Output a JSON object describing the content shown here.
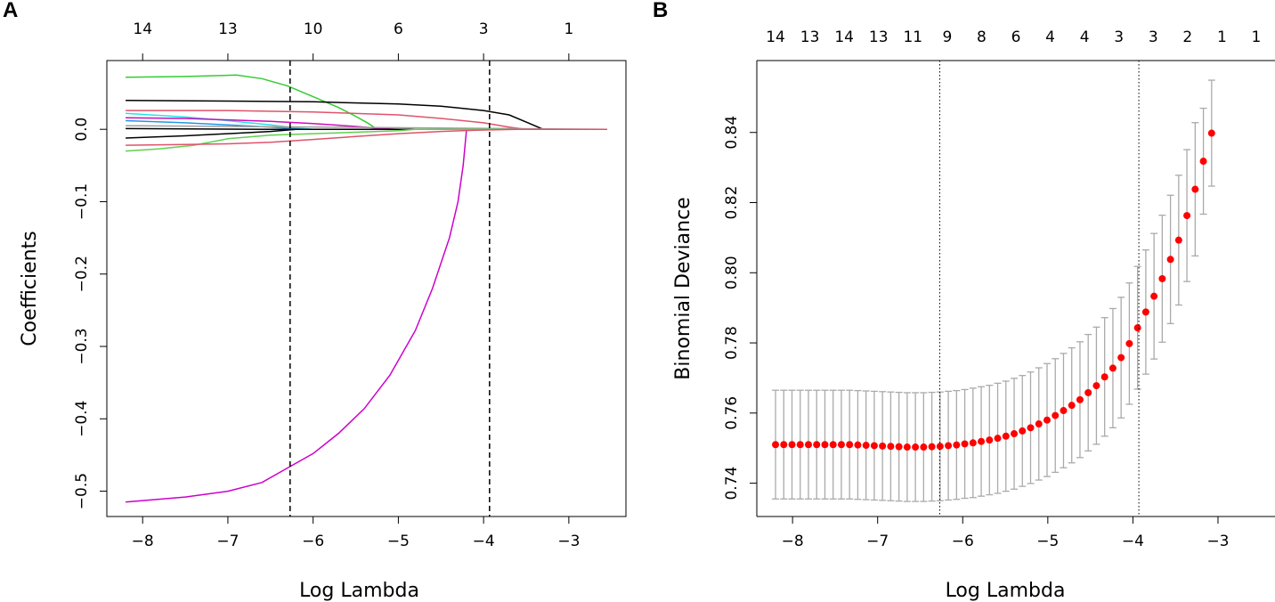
{
  "chart_data": [
    {
      "panel_label": "A",
      "type": "line",
      "title": "",
      "xlabel": "Log Lambda",
      "ylabel": "Coefficients",
      "xlim": [
        -8.2,
        -2.55
      ],
      "ylim": [
        -0.52,
        0.075
      ],
      "x_ticks": [
        "−8",
        "−7",
        "−6",
        "−5",
        "−4",
        "−3"
      ],
      "x_tick_values": [
        -8,
        -7,
        -6,
        -5,
        -4,
        -3
      ],
      "y_ticks": [
        "0.0",
        "−0.1",
        "−0.2",
        "−0.3",
        "−0.4",
        "−0.5"
      ],
      "y_tick_values": [
        0.0,
        -0.1,
        -0.2,
        -0.3,
        -0.4,
        -0.5
      ],
      "top_axis_labels": [
        "14",
        "13",
        "10",
        "6",
        "3",
        "1"
      ],
      "top_axis_values": [
        -8,
        -7,
        -6,
        -5,
        -4,
        -3
      ],
      "vlines": [
        -6.27,
        -3.93
      ],
      "vline_style": "dashed",
      "series": [
        {
          "name": "purple",
          "color": "#CC00CC",
          "x": [
            -8.2,
            -7.5,
            -7.0,
            -6.6,
            -6.27,
            -6.0,
            -5.7,
            -5.4,
            -5.1,
            -4.8,
            -4.6,
            -4.4,
            -4.3,
            -4.24,
            -4.2,
            -2.55
          ],
          "y": [
            -0.515,
            -0.508,
            -0.5,
            -0.488,
            -0.466,
            -0.448,
            -0.42,
            -0.386,
            -0.34,
            -0.278,
            -0.22,
            -0.15,
            -0.1,
            -0.05,
            0.0,
            0.0
          ]
        },
        {
          "name": "green-top",
          "color": "#33CC33",
          "x": [
            -8.2,
            -7.5,
            -6.9,
            -6.6,
            -6.3,
            -6.0,
            -5.7,
            -5.5,
            -5.35,
            -5.25,
            -2.55
          ],
          "y": [
            0.072,
            0.073,
            0.075,
            0.07,
            0.06,
            0.045,
            0.03,
            0.018,
            0.008,
            0.0,
            0.0
          ]
        },
        {
          "name": "black-top",
          "color": "#000000",
          "x": [
            -8.2,
            -7.0,
            -6.0,
            -5.0,
            -4.5,
            -4.0,
            -3.7,
            -3.5,
            -3.3,
            -2.55
          ],
          "y": [
            0.04,
            0.039,
            0.038,
            0.035,
            0.032,
            0.026,
            0.02,
            0.01,
            0.0,
            0.0
          ]
        },
        {
          "name": "red-top",
          "color": "#DF536B",
          "x": [
            -8.2,
            -7.0,
            -6.0,
            -5.0,
            -4.5,
            -4.0,
            -3.7,
            -3.5,
            -2.55
          ],
          "y": [
            0.026,
            0.026,
            0.024,
            0.02,
            0.015,
            0.009,
            0.003,
            0.0,
            0.0
          ]
        },
        {
          "name": "cyan",
          "color": "#28E2E5",
          "x": [
            -8.2,
            -7.5,
            -7.0,
            -6.5,
            -6.2,
            -6.0,
            -2.55
          ],
          "y": [
            0.022,
            0.017,
            0.012,
            0.006,
            0.002,
            0.0,
            0.0
          ]
        },
        {
          "name": "blue",
          "color": "#2297E6",
          "x": [
            -8.2,
            -7.5,
            -7.0,
            -6.5,
            -6.1,
            -2.55
          ],
          "y": [
            0.012,
            0.009,
            0.006,
            0.003,
            0.0,
            0.0
          ]
        },
        {
          "name": "magenta-small",
          "color": "#CD0BBC",
          "x": [
            -8.2,
            -7.5,
            -7.0,
            -6.5,
            -6.0,
            -5.5,
            -5.2,
            -5.0,
            -2.55
          ],
          "y": [
            0.016,
            0.015,
            0.013,
            0.011,
            0.008,
            0.004,
            0.001,
            0.0,
            0.0
          ]
        },
        {
          "name": "grey",
          "color": "#9E9E9E",
          "x": [
            -8.2,
            -2.55
          ],
          "y": [
            0.005,
            0.0
          ]
        },
        {
          "name": "black-flat",
          "color": "#000000",
          "x": [
            -8.2,
            -6.5,
            -2.55
          ],
          "y": [
            0.001,
            0.0,
            0.0
          ]
        },
        {
          "name": "black-neg",
          "color": "#000000",
          "x": [
            -8.2,
            -7.5,
            -7.0,
            -6.5,
            -6.2,
            -2.55
          ],
          "y": [
            -0.012,
            -0.009,
            -0.006,
            -0.003,
            0.0,
            0.0
          ]
        },
        {
          "name": "green-neg",
          "color": "#61D04F",
          "x": [
            -8.2,
            -7.8,
            -7.4,
            -7.0,
            -6.5,
            -6.0,
            -5.5,
            -5.0,
            -4.8,
            -2.55
          ],
          "y": [
            -0.03,
            -0.027,
            -0.022,
            -0.013,
            -0.008,
            -0.006,
            -0.004,
            -0.002,
            0.0,
            0.0
          ]
        },
        {
          "name": "red-neg",
          "color": "#DF536B",
          "x": [
            -8.2,
            -7.5,
            -7.0,
            -6.5,
            -6.0,
            -5.5,
            -5.0,
            -4.5,
            -4.0,
            -3.6,
            -2.55
          ],
          "y": [
            -0.022,
            -0.021,
            -0.02,
            -0.018,
            -0.014,
            -0.01,
            -0.006,
            -0.003,
            -0.001,
            0.0,
            0.0
          ]
        }
      ]
    },
    {
      "panel_label": "B",
      "type": "scatter",
      "title": "",
      "xlabel": "Log Lambda",
      "ylabel": "Binomial Deviance",
      "xlim": [
        -8.2,
        -2.55
      ],
      "ylim": [
        0.735,
        0.855
      ],
      "x_ticks": [
        "−8",
        "−7",
        "−6",
        "−5",
        "−4",
        "−3"
      ],
      "x_tick_values": [
        -8,
        -7,
        -6,
        -5,
        -4,
        -3
      ],
      "y_ticks": [
        "0.74",
        "0.76",
        "0.78",
        "0.80",
        "0.82",
        "0.84"
      ],
      "y_tick_values": [
        0.74,
        0.76,
        0.78,
        0.8,
        0.82,
        0.84
      ],
      "top_axis_labels": [
        "14",
        "13",
        "14",
        "13",
        "11",
        "9",
        "8",
        "6",
        "4",
        "4",
        "3",
        "3",
        "2",
        "1",
        "1"
      ],
      "vlines": [
        -6.27,
        -3.93
      ],
      "vline_style": "dotted",
      "point_color": "#FF0000",
      "errorbar_color": "#AAAAAA",
      "lambda_start": -8.2,
      "lambda_step": 0.0967,
      "means": [
        0.751,
        0.751,
        0.751,
        0.751,
        0.751,
        0.751,
        0.751,
        0.751,
        0.751,
        0.751,
        0.7509,
        0.7508,
        0.7507,
        0.7506,
        0.7505,
        0.7504,
        0.7503,
        0.7503,
        0.7503,
        0.7504,
        0.7505,
        0.7507,
        0.7509,
        0.7512,
        0.7515,
        0.7519,
        0.7523,
        0.7528,
        0.7534,
        0.7541,
        0.7549,
        0.7558,
        0.7569,
        0.758,
        0.7593,
        0.7607,
        0.7622,
        0.7638,
        0.7658,
        0.7678,
        0.7703,
        0.7728,
        0.7758,
        0.7798,
        0.7843,
        0.7888,
        0.7933,
        0.7983,
        0.8038,
        0.8093,
        0.8163,
        0.8238,
        0.8318,
        0.8398
      ],
      "se": [
        0.0155,
        0.0155,
        0.0155,
        0.0155,
        0.0155,
        0.0155,
        0.0155,
        0.0155,
        0.0155,
        0.0155,
        0.0155,
        0.0155,
        0.0155,
        0.0155,
        0.0155,
        0.0155,
        0.0155,
        0.0155,
        0.0155,
        0.0155,
        0.0155,
        0.0155,
        0.0155,
        0.0155,
        0.0156,
        0.0156,
        0.0156,
        0.0157,
        0.0157,
        0.0158,
        0.0158,
        0.0159,
        0.016,
        0.0161,
        0.0162,
        0.0163,
        0.0164,
        0.0165,
        0.0166,
        0.0167,
        0.0169,
        0.017,
        0.0172,
        0.0173,
        0.0175,
        0.0177,
        0.0179,
        0.0181,
        0.0183,
        0.0185,
        0.0188,
        0.019,
        0.0151,
        0.0151
      ]
    }
  ]
}
